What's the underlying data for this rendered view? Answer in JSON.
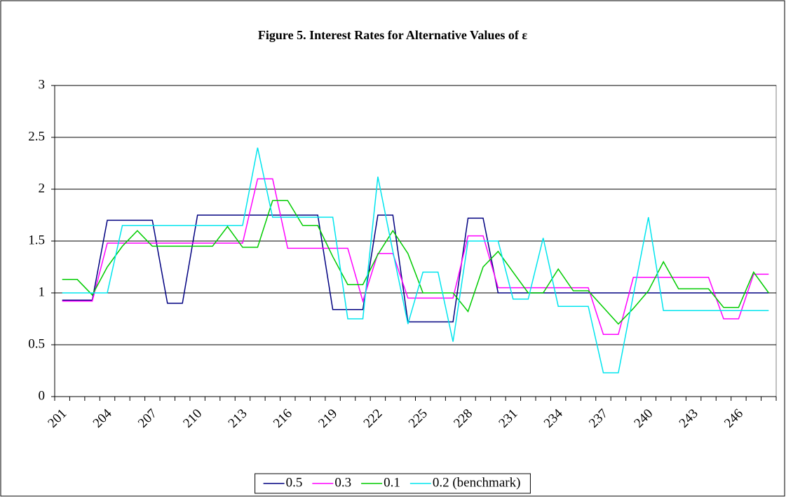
{
  "chart_data": {
    "type": "line",
    "title": "Figure 5. Interest Rates for Alternative Values of ε",
    "categories": [
      "201",
      null,
      null,
      "204",
      null,
      null,
      "207",
      null,
      null,
      "210",
      null,
      null,
      "213",
      null,
      null,
      "216",
      null,
      null,
      "219",
      null,
      null,
      "222",
      null,
      null,
      "225",
      null,
      null,
      "228",
      null,
      null,
      "231",
      null,
      null,
      "234",
      null,
      null,
      "237",
      null,
      null,
      "240",
      null,
      null,
      "243",
      null,
      null,
      "246",
      null,
      null
    ],
    "series": [
      {
        "name": "0.5",
        "color": "#000080",
        "values": [
          0.93,
          0.93,
          0.93,
          1.7,
          1.7,
          1.7,
          1.7,
          0.9,
          0.9,
          1.75,
          1.75,
          1.75,
          1.75,
          1.75,
          1.75,
          1.75,
          1.75,
          1.75,
          0.84,
          0.84,
          0.84,
          1.75,
          1.75,
          0.72,
          0.72,
          0.72,
          0.72,
          1.72,
          1.72,
          1.0,
          1.0,
          1.0,
          1.0,
          1.0,
          1.0,
          1.0,
          1.0,
          1.0,
          1.0,
          1.0,
          1.0,
          1.0,
          1.0,
          1.0,
          1.0,
          1.0,
          1.0,
          1.0
        ]
      },
      {
        "name": "0.3",
        "color": "#ff00ff",
        "values": [
          0.92,
          0.92,
          0.92,
          1.48,
          1.48,
          1.48,
          1.48,
          1.48,
          1.48,
          1.48,
          1.48,
          1.48,
          1.48,
          2.1,
          2.1,
          1.43,
          1.43,
          1.43,
          1.43,
          1.43,
          0.92,
          1.38,
          1.38,
          0.95,
          0.95,
          0.95,
          0.95,
          1.55,
          1.55,
          1.05,
          1.05,
          1.05,
          1.05,
          1.05,
          1.05,
          1.05,
          0.6,
          0.6,
          1.15,
          1.15,
          1.15,
          1.15,
          1.15,
          1.15,
          0.75,
          0.75,
          1.18,
          1.18
        ]
      },
      {
        "name": "0.1",
        "color": "#00cc00",
        "values": [
          1.13,
          1.13,
          0.98,
          1.25,
          1.45,
          1.6,
          1.45,
          1.45,
          1.45,
          1.45,
          1.45,
          1.64,
          1.44,
          1.44,
          1.89,
          1.89,
          1.65,
          1.65,
          1.35,
          1.08,
          1.08,
          1.37,
          1.6,
          1.38,
          1.0,
          1.0,
          1.0,
          0.82,
          1.25,
          1.4,
          1.2,
          1.0,
          1.0,
          1.23,
          1.02,
          1.02,
          0.86,
          0.7,
          0.85,
          1.02,
          1.3,
          1.04,
          1.04,
          1.04,
          0.86,
          0.86,
          1.2,
          1.0
        ]
      },
      {
        "name": "0.2 (benchmark)",
        "color": "#00e5ee",
        "values": [
          1.0,
          1.0,
          1.0,
          1.0,
          1.65,
          1.65,
          1.65,
          1.65,
          1.65,
          1.65,
          1.65,
          1.65,
          1.65,
          2.4,
          1.73,
          1.73,
          1.73,
          1.73,
          1.73,
          0.75,
          0.75,
          2.12,
          1.4,
          0.7,
          1.2,
          1.2,
          0.53,
          1.5,
          1.5,
          1.5,
          0.94,
          0.94,
          1.53,
          0.87,
          0.87,
          0.87,
          0.23,
          0.23,
          0.98,
          1.73,
          0.83,
          0.83,
          0.83,
          0.83,
          0.83,
          0.83,
          0.83,
          0.83
        ]
      }
    ],
    "ylim": [
      0,
      3
    ],
    "yticks": [
      0,
      0.5,
      1,
      1.5,
      2,
      2.5,
      3
    ],
    "grid": true,
    "legend": "bottom"
  }
}
